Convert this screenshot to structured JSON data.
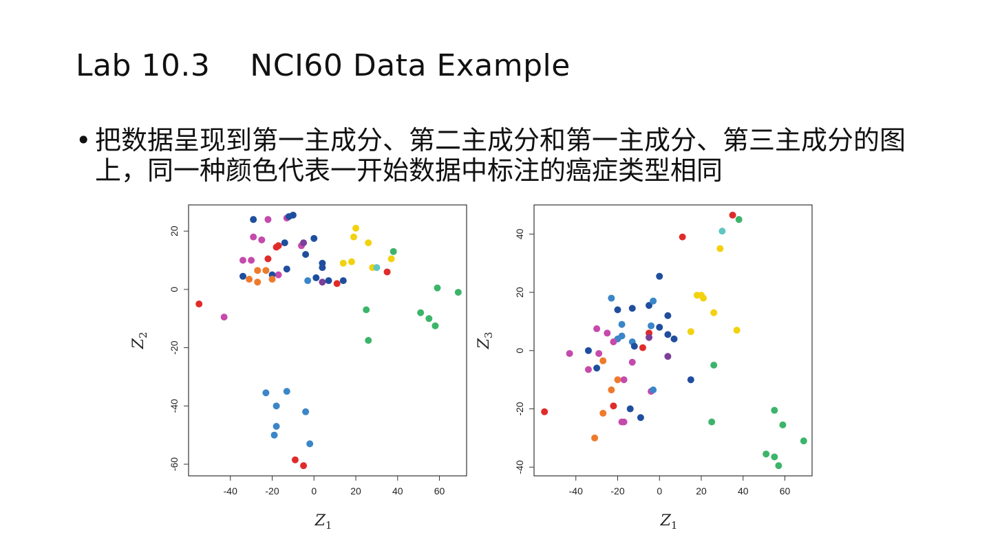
{
  "slide": {
    "title": "Lab 10.3    NCI60 Data Example",
    "bullet_symbol": "•",
    "bullet_text": "把数据呈现到第一主成分、第二主成分和第一主成分、第三主成分的图上，同一种颜色代表一开始数据中标注的癌症类型相同"
  },
  "colors": {
    "darkblue": "#1f4e9e",
    "blue": "#3a86c8",
    "red": "#e02b2b",
    "magenta": "#c54aac",
    "purple": "#7b3f98",
    "orange": "#ee7a2d",
    "yellow": "#f2d20f",
    "green": "#3cb46a",
    "cyan": "#5fc6c2"
  },
  "chart_data": [
    {
      "type": "scatter",
      "xlabel": "Z",
      "xlabel_sub": "1",
      "ylabel": "Z",
      "ylabel_sub": "2",
      "xlim": [
        -60,
        73
      ],
      "ylim": [
        -64,
        29
      ],
      "xticks": [
        -40,
        -20,
        0,
        20,
        40,
        60
      ],
      "yticks": [
        -60,
        -40,
        -20,
        0,
        20
      ],
      "grid": false,
      "points": [
        {
          "x": -29,
          "y": 24,
          "c": "darkblue"
        },
        {
          "x": -22,
          "y": 24,
          "c": "magenta"
        },
        {
          "x": -13,
          "y": 24.5,
          "c": "magenta"
        },
        {
          "x": -12,
          "y": 25,
          "c": "darkblue"
        },
        {
          "x": -10,
          "y": 25.5,
          "c": "darkblue"
        },
        {
          "x": -29,
          "y": 18,
          "c": "magenta"
        },
        {
          "x": -25,
          "y": 17,
          "c": "magenta"
        },
        {
          "x": -18,
          "y": 14.5,
          "c": "red"
        },
        {
          "x": -17,
          "y": 15,
          "c": "red"
        },
        {
          "x": -14,
          "y": 16,
          "c": "darkblue"
        },
        {
          "x": -6,
          "y": 15,
          "c": "magenta"
        },
        {
          "x": -5,
          "y": 16,
          "c": "purple"
        },
        {
          "x": 0,
          "y": 17.5,
          "c": "darkblue"
        },
        {
          "x": -4,
          "y": 12,
          "c": "darkblue"
        },
        {
          "x": -34,
          "y": 10,
          "c": "magenta"
        },
        {
          "x": -30,
          "y": 10,
          "c": "magenta"
        },
        {
          "x": -22,
          "y": 10.5,
          "c": "red"
        },
        {
          "x": -27,
          "y": 6.5,
          "c": "orange"
        },
        {
          "x": -23,
          "y": 6.5,
          "c": "orange"
        },
        {
          "x": -13,
          "y": 7,
          "c": "darkblue"
        },
        {
          "x": -17,
          "y": 5,
          "c": "magenta"
        },
        {
          "x": -20,
          "y": 5,
          "c": "darkblue"
        },
        {
          "x": -34,
          "y": 4.5,
          "c": "darkblue"
        },
        {
          "x": -31,
          "y": 3.5,
          "c": "orange"
        },
        {
          "x": -27,
          "y": 2.5,
          "c": "orange"
        },
        {
          "x": -20,
          "y": 3.5,
          "c": "orange"
        },
        {
          "x": 4,
          "y": 9,
          "c": "darkblue"
        },
        {
          "x": 4,
          "y": 7.5,
          "c": "darkblue"
        },
        {
          "x": -3,
          "y": 3,
          "c": "blue"
        },
        {
          "x": 1,
          "y": 4,
          "c": "darkblue"
        },
        {
          "x": 4,
          "y": 2.5,
          "c": "purple"
        },
        {
          "x": 7,
          "y": 3,
          "c": "darkblue"
        },
        {
          "x": 11,
          "y": 2,
          "c": "red"
        },
        {
          "x": 14,
          "y": 3,
          "c": "darkblue"
        },
        {
          "x": 20,
          "y": 21,
          "c": "yellow"
        },
        {
          "x": 19,
          "y": 18,
          "c": "yellow"
        },
        {
          "x": 26,
          "y": 16,
          "c": "yellow"
        },
        {
          "x": 14,
          "y": 9,
          "c": "yellow"
        },
        {
          "x": 18,
          "y": 9.5,
          "c": "yellow"
        },
        {
          "x": 28,
          "y": 7.5,
          "c": "yellow"
        },
        {
          "x": 30,
          "y": 7.5,
          "c": "cyan"
        },
        {
          "x": 37,
          "y": 10.5,
          "c": "yellow"
        },
        {
          "x": 38,
          "y": 13,
          "c": "green"
        },
        {
          "x": 35,
          "y": 6,
          "c": "red"
        },
        {
          "x": 59,
          "y": 0.5,
          "c": "green"
        },
        {
          "x": 69,
          "y": -1,
          "c": "green"
        },
        {
          "x": 25,
          "y": -7,
          "c": "green"
        },
        {
          "x": 26,
          "y": -17.5,
          "c": "green"
        },
        {
          "x": 51,
          "y": -8,
          "c": "green"
        },
        {
          "x": 55,
          "y": -10,
          "c": "green"
        },
        {
          "x": 58,
          "y": -12.5,
          "c": "green"
        },
        {
          "x": -55,
          "y": -5,
          "c": "red"
        },
        {
          "x": -43,
          "y": -9.5,
          "c": "magenta"
        },
        {
          "x": -23,
          "y": -35.5,
          "c": "blue"
        },
        {
          "x": -13,
          "y": -35,
          "c": "blue"
        },
        {
          "x": -18,
          "y": -40,
          "c": "blue"
        },
        {
          "x": -4,
          "y": -42,
          "c": "blue"
        },
        {
          "x": -18,
          "y": -47,
          "c": "blue"
        },
        {
          "x": -19,
          "y": -50,
          "c": "blue"
        },
        {
          "x": -2,
          "y": -53,
          "c": "blue"
        },
        {
          "x": -9,
          "y": -58.5,
          "c": "red"
        },
        {
          "x": -5,
          "y": -60.5,
          "c": "red"
        }
      ]
    },
    {
      "type": "scatter",
      "xlabel": "Z",
      "xlabel_sub": "1",
      "ylabel": "Z",
      "ylabel_sub": "3",
      "xlim": [
        -60,
        73
      ],
      "ylim": [
        -43,
        50
      ],
      "xticks": [
        -40,
        -20,
        0,
        20,
        40,
        60
      ],
      "yticks": [
        -40,
        -20,
        0,
        20,
        40
      ],
      "grid": false,
      "points": [
        {
          "x": 35,
          "y": 46.5,
          "c": "red"
        },
        {
          "x": 38,
          "y": 45,
          "c": "green"
        },
        {
          "x": 30,
          "y": 41,
          "c": "cyan"
        },
        {
          "x": 11,
          "y": 39,
          "c": "red"
        },
        {
          "x": 29,
          "y": 35,
          "c": "yellow"
        },
        {
          "x": 0,
          "y": 25.5,
          "c": "darkblue"
        },
        {
          "x": 18,
          "y": 19,
          "c": "yellow"
        },
        {
          "x": 20,
          "y": 19,
          "c": "yellow"
        },
        {
          "x": 21,
          "y": 18,
          "c": "yellow"
        },
        {
          "x": 26,
          "y": 13,
          "c": "yellow"
        },
        {
          "x": -23,
          "y": 18,
          "c": "blue"
        },
        {
          "x": -20,
          "y": 14,
          "c": "darkblue"
        },
        {
          "x": -13,
          "y": 14.5,
          "c": "darkblue"
        },
        {
          "x": -5,
          "y": 15.5,
          "c": "darkblue"
        },
        {
          "x": -3,
          "y": 17,
          "c": "blue"
        },
        {
          "x": 4,
          "y": 12,
          "c": "darkblue"
        },
        {
          "x": -18,
          "y": 9,
          "c": "blue"
        },
        {
          "x": -4,
          "y": 8.5,
          "c": "blue"
        },
        {
          "x": 0,
          "y": 8,
          "c": "darkblue"
        },
        {
          "x": -30,
          "y": 7.5,
          "c": "magenta"
        },
        {
          "x": -25,
          "y": 6,
          "c": "magenta"
        },
        {
          "x": -18,
          "y": 5,
          "c": "blue"
        },
        {
          "x": -20,
          "y": 4,
          "c": "blue"
        },
        {
          "x": -22,
          "y": 3,
          "c": "magenta"
        },
        {
          "x": -13,
          "y": 3,
          "c": "blue"
        },
        {
          "x": -12,
          "y": 1.5,
          "c": "darkblue"
        },
        {
          "x": -8,
          "y": 1,
          "c": "red"
        },
        {
          "x": -5,
          "y": 6,
          "c": "red"
        },
        {
          "x": -5,
          "y": 4.5,
          "c": "purple"
        },
        {
          "x": 4,
          "y": 5.5,
          "c": "darkblue"
        },
        {
          "x": 7,
          "y": 4,
          "c": "darkblue"
        },
        {
          "x": 15,
          "y": 6.5,
          "c": "yellow"
        },
        {
          "x": 37,
          "y": 7,
          "c": "yellow"
        },
        {
          "x": -34,
          "y": 0,
          "c": "darkblue"
        },
        {
          "x": -43,
          "y": -1,
          "c": "magenta"
        },
        {
          "x": -29,
          "y": -1,
          "c": "magenta"
        },
        {
          "x": -27,
          "y": -3.5,
          "c": "orange"
        },
        {
          "x": -30,
          "y": -6,
          "c": "darkblue"
        },
        {
          "x": -34,
          "y": -6.5,
          "c": "magenta"
        },
        {
          "x": -13,
          "y": -4,
          "c": "magenta"
        },
        {
          "x": -20,
          "y": -10,
          "c": "orange"
        },
        {
          "x": -17,
          "y": -10,
          "c": "magenta"
        },
        {
          "x": 4,
          "y": -2,
          "c": "purple"
        },
        {
          "x": 26,
          "y": -5,
          "c": "green"
        },
        {
          "x": 15,
          "y": -10,
          "c": "darkblue"
        },
        {
          "x": -23,
          "y": -13.5,
          "c": "orange"
        },
        {
          "x": -4,
          "y": -14,
          "c": "magenta"
        },
        {
          "x": -3,
          "y": -13.5,
          "c": "blue"
        },
        {
          "x": -22,
          "y": -19,
          "c": "red"
        },
        {
          "x": -14,
          "y": -20,
          "c": "darkblue"
        },
        {
          "x": -27,
          "y": -21.5,
          "c": "orange"
        },
        {
          "x": -9,
          "y": -23,
          "c": "darkblue"
        },
        {
          "x": -18,
          "y": -24.5,
          "c": "magenta"
        },
        {
          "x": -17,
          "y": -24.5,
          "c": "magenta"
        },
        {
          "x": 25,
          "y": -24.5,
          "c": "green"
        },
        {
          "x": -55,
          "y": -21,
          "c": "red"
        },
        {
          "x": -31,
          "y": -30,
          "c": "orange"
        },
        {
          "x": 55,
          "y": -20.5,
          "c": "green"
        },
        {
          "x": 59,
          "y": -25.5,
          "c": "green"
        },
        {
          "x": 69,
          "y": -31,
          "c": "green"
        },
        {
          "x": 51,
          "y": -35.5,
          "c": "green"
        },
        {
          "x": 55,
          "y": -36.5,
          "c": "green"
        },
        {
          "x": 57,
          "y": -39.5,
          "c": "green"
        }
      ]
    }
  ]
}
